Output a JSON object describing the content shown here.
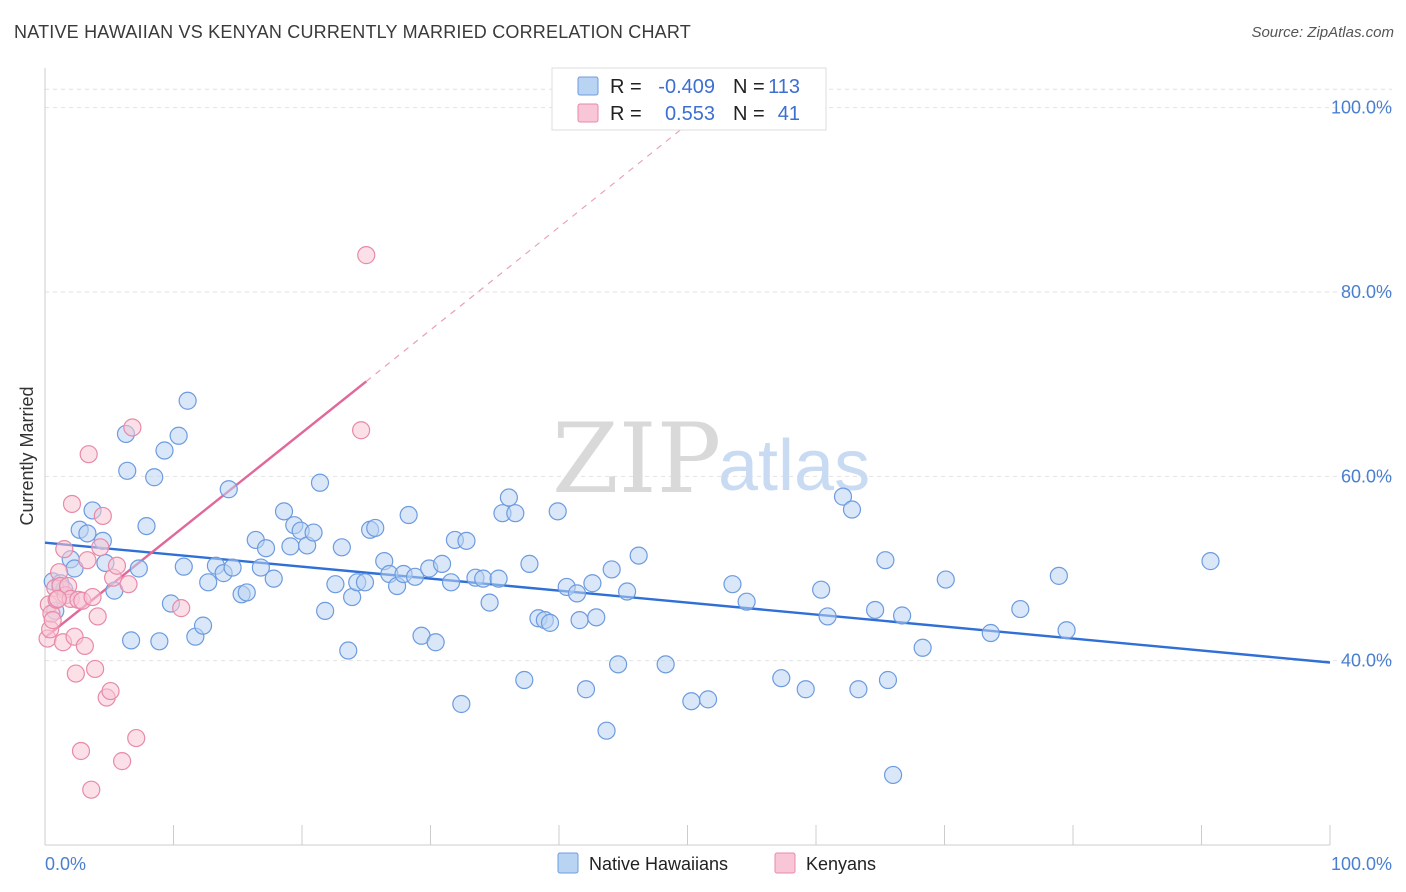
{
  "header": {
    "title": "NATIVE HAWAIIAN VS KENYAN CURRENTLY MARRIED CORRELATION CHART",
    "source": "Source: ZipAtlas.com"
  },
  "watermark": {
    "zip": "ZIP",
    "atlas": "atlas"
  },
  "legend": {
    "r_label": "R =",
    "n_label": "N =",
    "rows": [
      {
        "name": "Native Hawaiians",
        "r": "-0.409",
        "n": "113",
        "fill": "#b9d3f3",
        "stroke": "#6d9be0"
      },
      {
        "name": "Kenyans",
        "r": "0.553",
        "n": "41",
        "fill": "#f8c6d6",
        "stroke": "#e88aa8"
      }
    ]
  },
  "chart_data": {
    "type": "scatter",
    "title": "NATIVE HAWAIIAN VS KENYAN CURRENTLY MARRIED CORRELATION CHART",
    "xlabel": "",
    "ylabel": "Currently Married",
    "xlim": [
      0,
      100
    ],
    "ylim": [
      20,
      103
    ],
    "x_tick_labels": [
      "0.0%",
      "100.0%"
    ],
    "y_ticks": [
      40,
      60,
      80,
      100
    ],
    "y_tick_labels": [
      "40.0%",
      "60.0%",
      "80.0%",
      "100.0%"
    ],
    "grid": true,
    "legend_position": "bottom",
    "series": [
      {
        "name": "Native Hawaiians",
        "color": "#6d9be0",
        "fill": "#b9d3f3",
        "trend": {
          "x0": 0,
          "y0": 52.8,
          "x1": 100,
          "y1": 39.8,
          "dashed_from": null
        },
        "points": [
          [
            0.6,
            48.6
          ],
          [
            0.8,
            45.4
          ],
          [
            1.2,
            48.4
          ],
          [
            1.5,
            47.7
          ],
          [
            2.0,
            51.0
          ],
          [
            2.3,
            50.0
          ],
          [
            2.7,
            54.2
          ],
          [
            3.3,
            53.8
          ],
          [
            3.7,
            56.3
          ],
          [
            4.5,
            53.0
          ],
          [
            4.7,
            50.6
          ],
          [
            5.4,
            47.6
          ],
          [
            6.3,
            64.6
          ],
          [
            6.4,
            60.6
          ],
          [
            6.7,
            42.2
          ],
          [
            7.3,
            50.0
          ],
          [
            7.9,
            54.6
          ],
          [
            8.5,
            59.9
          ],
          [
            8.9,
            42.1
          ],
          [
            9.3,
            62.8
          ],
          [
            9.8,
            46.2
          ],
          [
            10.4,
            64.4
          ],
          [
            10.8,
            50.2
          ],
          [
            11.1,
            68.2
          ],
          [
            11.7,
            42.6
          ],
          [
            12.3,
            43.8
          ],
          [
            12.7,
            48.5
          ],
          [
            13.3,
            50.3
          ],
          [
            13.9,
            49.5
          ],
          [
            14.3,
            58.6
          ],
          [
            14.6,
            50.1
          ],
          [
            15.3,
            47.2
          ],
          [
            15.7,
            47.4
          ],
          [
            16.4,
            53.1
          ],
          [
            16.8,
            50.1
          ],
          [
            17.2,
            52.2
          ],
          [
            17.8,
            48.9
          ],
          [
            18.6,
            56.2
          ],
          [
            19.1,
            52.4
          ],
          [
            19.4,
            54.7
          ],
          [
            19.9,
            54.1
          ],
          [
            20.4,
            52.5
          ],
          [
            20.9,
            53.9
          ],
          [
            21.4,
            59.3
          ],
          [
            21.8,
            45.4
          ],
          [
            22.6,
            48.3
          ],
          [
            23.1,
            52.3
          ],
          [
            23.6,
            41.1
          ],
          [
            23.9,
            46.9
          ],
          [
            24.3,
            48.5
          ],
          [
            24.9,
            48.5
          ],
          [
            25.3,
            54.2
          ],
          [
            25.7,
            54.4
          ],
          [
            26.4,
            50.8
          ],
          [
            26.8,
            49.4
          ],
          [
            27.4,
            48.1
          ],
          [
            27.9,
            49.4
          ],
          [
            28.3,
            55.8
          ],
          [
            28.8,
            49.1
          ],
          [
            29.3,
            42.7
          ],
          [
            29.9,
            50.0
          ],
          [
            30.4,
            42.0
          ],
          [
            30.9,
            50.5
          ],
          [
            31.6,
            48.5
          ],
          [
            31.9,
            53.1
          ],
          [
            32.4,
            35.3
          ],
          [
            32.8,
            53.0
          ],
          [
            33.5,
            49.0
          ],
          [
            34.1,
            48.9
          ],
          [
            34.6,
            46.3
          ],
          [
            35.3,
            48.9
          ],
          [
            35.6,
            56.0
          ],
          [
            36.1,
            57.7
          ],
          [
            36.6,
            56.0
          ],
          [
            37.3,
            37.9
          ],
          [
            37.7,
            50.5
          ],
          [
            38.4,
            44.6
          ],
          [
            38.9,
            44.4
          ],
          [
            39.3,
            44.1
          ],
          [
            39.9,
            56.2
          ],
          [
            40.6,
            48.0
          ],
          [
            41.4,
            47.3
          ],
          [
            41.6,
            44.4
          ],
          [
            42.1,
            36.9
          ],
          [
            42.6,
            48.4
          ],
          [
            42.9,
            44.7
          ],
          [
            43.7,
            32.4
          ],
          [
            44.1,
            49.9
          ],
          [
            44.6,
            39.6
          ],
          [
            45.3,
            47.5
          ],
          [
            46.2,
            51.4
          ],
          [
            48.3,
            39.6
          ],
          [
            50.3,
            35.6
          ],
          [
            51.6,
            35.8
          ],
          [
            53.5,
            48.3
          ],
          [
            54.6,
            46.4
          ],
          [
            57.3,
            38.1
          ],
          [
            59.2,
            36.9
          ],
          [
            60.4,
            47.7
          ],
          [
            60.9,
            44.8
          ],
          [
            62.1,
            57.8
          ],
          [
            62.8,
            56.4
          ],
          [
            63.3,
            36.9
          ],
          [
            64.6,
            45.5
          ],
          [
            65.4,
            50.9
          ],
          [
            65.6,
            37.9
          ],
          [
            66.0,
            27.6
          ],
          [
            66.7,
            44.9
          ],
          [
            68.3,
            41.4
          ],
          [
            70.1,
            48.8
          ],
          [
            73.6,
            43.0
          ],
          [
            75.9,
            45.6
          ],
          [
            78.9,
            49.2
          ],
          [
            79.5,
            43.3
          ],
          [
            90.7,
            50.8
          ]
        ]
      },
      {
        "name": "Kenyans",
        "color": "#e88aa8",
        "fill": "#f8c6d6",
        "trend": {
          "x0": 0,
          "y0": 42.5,
          "x1": 25,
          "y1": 70.3,
          "dashed_to": {
            "x": 50,
            "y": 98.2
          }
        },
        "points": [
          [
            0.2,
            42.4
          ],
          [
            0.3,
            46.1
          ],
          [
            0.4,
            43.4
          ],
          [
            0.5,
            45.1
          ],
          [
            0.6,
            44.4
          ],
          [
            0.8,
            47.9
          ],
          [
            0.9,
            46.6
          ],
          [
            1.1,
            49.6
          ],
          [
            1.2,
            48.1
          ],
          [
            1.4,
            42.0
          ],
          [
            1.5,
            52.1
          ],
          [
            1.6,
            47.1
          ],
          [
            1.8,
            48.1
          ],
          [
            2.0,
            46.7
          ],
          [
            2.1,
            57.0
          ],
          [
            2.3,
            42.6
          ],
          [
            2.4,
            38.6
          ],
          [
            2.6,
            46.6
          ],
          [
            2.8,
            30.2
          ],
          [
            2.9,
            46.5
          ],
          [
            3.1,
            41.6
          ],
          [
            3.3,
            50.9
          ],
          [
            3.4,
            62.4
          ],
          [
            3.6,
            26.0
          ],
          [
            3.7,
            46.9
          ],
          [
            3.9,
            39.1
          ],
          [
            4.1,
            44.8
          ],
          [
            4.3,
            52.3
          ],
          [
            4.5,
            55.7
          ],
          [
            4.8,
            36.0
          ],
          [
            5.1,
            36.7
          ],
          [
            5.3,
            49.0
          ],
          [
            5.6,
            50.3
          ],
          [
            6.0,
            29.1
          ],
          [
            6.5,
            48.3
          ],
          [
            6.8,
            65.3
          ],
          [
            7.1,
            31.6
          ],
          [
            10.6,
            45.7
          ],
          [
            25.0,
            84.0
          ],
          [
            24.6,
            65.0
          ],
          [
            1.0,
            46.7
          ]
        ]
      }
    ]
  }
}
